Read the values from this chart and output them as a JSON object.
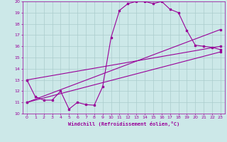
{
  "xlabel": "Windchill (Refroidissement éolien,°C)",
  "bg_color": "#cce8e8",
  "grid_color": "#aacccc",
  "line_color": "#990099",
  "xlim": [
    -0.5,
    23.5
  ],
  "ylim": [
    10,
    20
  ],
  "xticks": [
    0,
    1,
    2,
    3,
    4,
    5,
    6,
    7,
    8,
    9,
    10,
    11,
    12,
    13,
    14,
    15,
    16,
    17,
    18,
    19,
    20,
    21,
    22,
    23
  ],
  "yticks": [
    10,
    11,
    12,
    13,
    14,
    15,
    16,
    17,
    18,
    19,
    20
  ],
  "curve1_x": [
    0,
    1,
    2,
    3,
    4,
    5,
    6,
    7,
    8,
    9,
    10,
    11,
    12,
    13,
    14,
    15,
    16,
    17,
    18,
    19,
    20,
    21,
    22,
    23
  ],
  "curve1_y": [
    13.0,
    11.5,
    11.2,
    11.2,
    12.0,
    10.4,
    11.0,
    10.8,
    10.75,
    12.4,
    16.8,
    19.2,
    19.8,
    20.0,
    20.0,
    19.8,
    20.0,
    19.3,
    19.0,
    17.4,
    16.1,
    16.0,
    15.9,
    15.7
  ],
  "line2_x": [
    0,
    23
  ],
  "line2_y": [
    11.0,
    17.5
  ],
  "line3_x": [
    0,
    23
  ],
  "line3_y": [
    11.0,
    15.5
  ],
  "line4_x": [
    0,
    23
  ],
  "line4_y": [
    13.0,
    16.0
  ]
}
